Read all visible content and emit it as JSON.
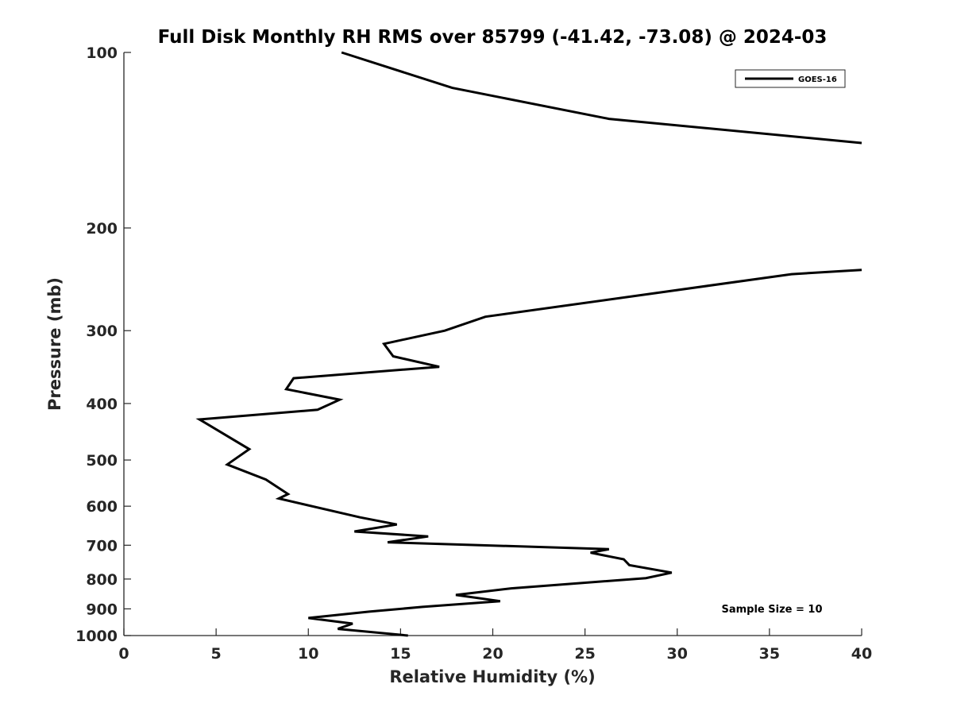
{
  "chart_data": {
    "type": "line",
    "title": "Full Disk Monthly RH RMS over 85799 (-41.42, -73.08) @ 2024-03",
    "xlabel": "Relative Humidity (%)",
    "ylabel": "Pressure (mb)",
    "xlim": [
      0,
      40
    ],
    "ylim": [
      100,
      1000
    ],
    "y_scale": "log",
    "y_reversed": true,
    "grid": false,
    "legend_position": "top-right",
    "x_ticks": [
      0,
      5,
      10,
      15,
      20,
      25,
      30,
      35,
      40
    ],
    "x_tick_labels": [
      "0",
      "5",
      "10",
      "15",
      "20",
      "25",
      "30",
      "35",
      "40"
    ],
    "y_ticks": [
      100,
      200,
      300,
      400,
      500,
      600,
      700,
      800,
      900,
      1000
    ],
    "y_tick_labels": [
      "100",
      "200",
      "300",
      "400",
      "500",
      "600",
      "700",
      "800",
      "900",
      "1000"
    ],
    "annotations": [
      "Sample Size = 10"
    ],
    "series": [
      {
        "name": "GOES-16",
        "color": "#000000",
        "points": [
          [
            11.8,
            100
          ],
          [
            17.8,
            115
          ],
          [
            26.3,
            130
          ],
          [
            40.0,
            143
          ],
          [
            null,
            null
          ],
          [
            40.0,
            236
          ],
          [
            39.0,
            237
          ],
          [
            36.2,
            240
          ],
          [
            19.6,
            284
          ],
          [
            17.4,
            300
          ],
          [
            14.1,
            316
          ],
          [
            14.6,
            332
          ],
          [
            17.1,
            346
          ],
          [
            9.2,
            362
          ],
          [
            8.8,
            378
          ],
          [
            11.7,
            394
          ],
          [
            10.5,
            410
          ],
          [
            4.1,
            426
          ],
          [
            6.8,
            479
          ],
          [
            5.6,
            509
          ],
          [
            7.7,
            540
          ],
          [
            8.9,
            572
          ],
          [
            8.4,
            582
          ],
          [
            12.8,
            627
          ],
          [
            14.8,
            645
          ],
          [
            12.5,
            663
          ],
          [
            16.5,
            676
          ],
          [
            14.3,
            692
          ],
          [
            26.3,
            711
          ],
          [
            25.3,
            721
          ],
          [
            27.1,
            740
          ],
          [
            27.4,
            757
          ],
          [
            29.7,
            780
          ],
          [
            28.3,
            797
          ],
          [
            21.0,
            830
          ],
          [
            18.0,
            852
          ],
          [
            20.4,
            873
          ],
          [
            16.2,
            893
          ],
          [
            13.3,
            910
          ],
          [
            10.0,
            933
          ],
          [
            12.4,
            954
          ],
          [
            11.6,
            974
          ],
          [
            15.4,
            1000
          ]
        ]
      }
    ]
  }
}
